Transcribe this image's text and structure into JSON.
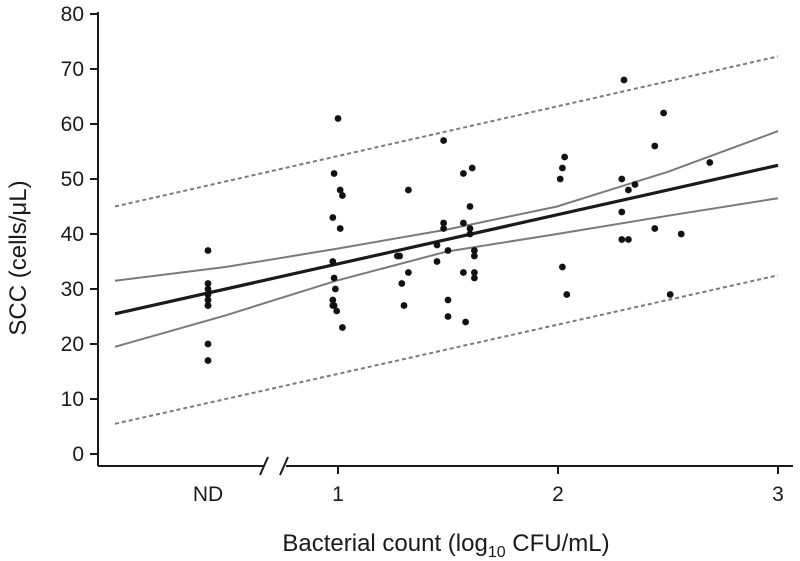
{
  "chart_data": {
    "type": "scatter",
    "xlabel": "Bacterial count (log",
    "xlabel_sub": "10",
    "xlabel_suffix": " CFU/mL)",
    "ylabel": "SCC (cells/μL)",
    "ylim": [
      0,
      80
    ],
    "yticks": [
      0,
      10,
      20,
      30,
      40,
      50,
      60,
      70,
      80
    ],
    "xlim": [
      0,
      3
    ],
    "x_categories": [
      {
        "label": "ND",
        "x": 0
      },
      {
        "label": "1",
        "x": 1
      },
      {
        "label": "2",
        "x": 2
      },
      {
        "label": "3",
        "x": 3
      }
    ],
    "axis_break": "between ND and 1",
    "points": [
      {
        "x": "ND",
        "y": 37
      },
      {
        "x": "ND",
        "y": 31
      },
      {
        "x": "ND",
        "y": 30
      },
      {
        "x": "ND",
        "y": 29
      },
      {
        "x": "ND",
        "y": 28
      },
      {
        "x": "ND",
        "y": 27
      },
      {
        "x": "ND",
        "y": 27
      },
      {
        "x": "ND",
        "y": 20
      },
      {
        "x": "ND",
        "y": 17
      },
      {
        "x": 0.97,
        "y": 51
      },
      {
        "x": 0.96,
        "y": 43
      },
      {
        "x": 0.96,
        "y": 35
      },
      {
        "x": 0.97,
        "y": 32
      },
      {
        "x": 0.98,
        "y": 30
      },
      {
        "x": 0.96,
        "y": 28
      },
      {
        "x": 0.96,
        "y": 27
      },
      {
        "x": 0.97,
        "y": 27
      },
      {
        "x": 0.99,
        "y": 26
      },
      {
        "x": 1.0,
        "y": 61
      },
      {
        "x": 1.01,
        "y": 48
      },
      {
        "x": 1.02,
        "y": 47
      },
      {
        "x": 1.01,
        "y": 41
      },
      {
        "x": 1.02,
        "y": 23
      },
      {
        "x": 1.28,
        "y": 36
      },
      {
        "x": 1.29,
        "y": 31
      },
      {
        "x": 1.3,
        "y": 27
      },
      {
        "x": 1.32,
        "y": 33
      },
      {
        "x": 1.32,
        "y": 48
      },
      {
        "x": 1.27,
        "y": 36
      },
      {
        "x": 1.45,
        "y": 38
      },
      {
        "x": 1.45,
        "y": 35
      },
      {
        "x": 1.48,
        "y": 57
      },
      {
        "x": 1.48,
        "y": 42
      },
      {
        "x": 1.48,
        "y": 41
      },
      {
        "x": 1.5,
        "y": 25
      },
      {
        "x": 1.5,
        "y": 28
      },
      {
        "x": 1.5,
        "y": 37
      },
      {
        "x": 1.57,
        "y": 51
      },
      {
        "x": 1.57,
        "y": 42
      },
      {
        "x": 1.57,
        "y": 33
      },
      {
        "x": 1.58,
        "y": 24
      },
      {
        "x": 1.6,
        "y": 45
      },
      {
        "x": 1.6,
        "y": 41
      },
      {
        "x": 1.6,
        "y": 40
      },
      {
        "x": 1.61,
        "y": 52
      },
      {
        "x": 1.62,
        "y": 37
      },
      {
        "x": 1.62,
        "y": 36
      },
      {
        "x": 1.62,
        "y": 33
      },
      {
        "x": 1.62,
        "y": 32
      },
      {
        "x": 2.01,
        "y": 50
      },
      {
        "x": 2.02,
        "y": 52
      },
      {
        "x": 2.03,
        "y": 54
      },
      {
        "x": 2.02,
        "y": 34
      },
      {
        "x": 2.04,
        "y": 29
      },
      {
        "x": 2.3,
        "y": 68
      },
      {
        "x": 2.29,
        "y": 50
      },
      {
        "x": 2.29,
        "y": 44
      },
      {
        "x": 2.29,
        "y": 39
      },
      {
        "x": 2.32,
        "y": 48
      },
      {
        "x": 2.32,
        "y": 39
      },
      {
        "x": 2.35,
        "y": 49
      },
      {
        "x": 2.44,
        "y": 56
      },
      {
        "x": 2.44,
        "y": 41
      },
      {
        "x": 2.48,
        "y": 62
      },
      {
        "x": 2.51,
        "y": 29
      },
      {
        "x": 2.56,
        "y": 40
      },
      {
        "x": 2.69,
        "y": 53
      }
    ],
    "lines": [
      {
        "role": "regression",
        "style": "solid-thick",
        "color": "#1a1a1a",
        "points": [
          [
            0,
            25.5
          ],
          [
            3,
            52.5
          ]
        ]
      },
      {
        "role": "confidence-upper",
        "style": "solid",
        "color": "#7a7a7a",
        "points": [
          [
            0,
            31.5
          ],
          [
            0.5,
            34.0
          ],
          [
            1,
            37.3
          ],
          [
            1.5,
            40.8
          ],
          [
            2,
            45.0
          ],
          [
            2.5,
            51.3
          ],
          [
            3,
            58.7
          ]
        ]
      },
      {
        "role": "confidence-lower",
        "style": "solid",
        "color": "#7a7a7a",
        "points": [
          [
            0,
            19.5
          ],
          [
            0.5,
            25.2
          ],
          [
            1,
            31.5
          ],
          [
            1.5,
            36.8
          ],
          [
            2,
            40.0
          ],
          [
            2.5,
            43.3
          ],
          [
            3,
            46.5
          ]
        ]
      },
      {
        "role": "prediction-upper",
        "style": "dashed",
        "color": "#7a7a7a",
        "points": [
          [
            0,
            45.0
          ],
          [
            3,
            72.3
          ]
        ]
      },
      {
        "role": "prediction-lower",
        "style": "dashed",
        "color": "#7a7a7a",
        "points": [
          [
            0,
            5.5
          ],
          [
            3,
            32.5
          ]
        ]
      }
    ],
    "grid": false,
    "legend": "none"
  }
}
